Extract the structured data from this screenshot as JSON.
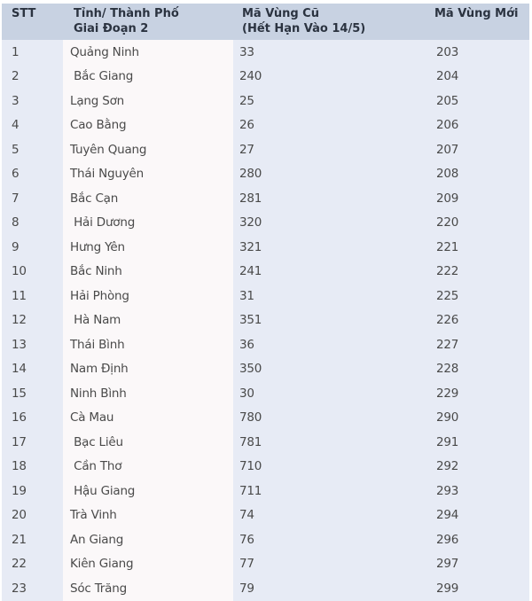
{
  "table": {
    "headers": [
      "STT",
      "Tỉnh/ Thành Phố\nGiai Đoạn 2",
      "Mã Vùng Cũ\n(Hết Hạn Vào 14/5)",
      "Mã Vùng Mới"
    ],
    "rows": [
      [
        "1",
        "Quảng Ninh",
        "33",
        "203"
      ],
      [
        "2",
        " Bắc Giang",
        "240",
        "204"
      ],
      [
        "3",
        "Lạng Sơn",
        "25",
        "205"
      ],
      [
        "4",
        "Cao Bằng",
        "26",
        "206"
      ],
      [
        "5",
        "Tuyên Quang",
        "27",
        "207"
      ],
      [
        "6",
        "Thái Nguyên",
        "280",
        "208"
      ],
      [
        "7",
        "Bắc Cạn",
        "281",
        "209"
      ],
      [
        "8",
        " Hải Dương",
        "320",
        "220"
      ],
      [
        "9",
        "Hưng Yên",
        "321",
        "221"
      ],
      [
        "10",
        "Bắc Ninh",
        "241",
        "222"
      ],
      [
        "11",
        "Hải Phòng",
        "31",
        "225"
      ],
      [
        "12",
        " Hà Nam",
        "351",
        "226"
      ],
      [
        "13",
        "Thái Bình",
        "36",
        "227"
      ],
      [
        "14",
        "Nam Định",
        "350",
        "228"
      ],
      [
        "15",
        "Ninh Bình",
        "30",
        "229"
      ],
      [
        "16",
        "Cà Mau",
        "780",
        "290"
      ],
      [
        "17",
        " Bạc Liêu",
        "781",
        "291"
      ],
      [
        "18",
        " Cần Thơ",
        "710",
        "292"
      ],
      [
        "19",
        " Hậu Giang",
        "711",
        "293"
      ],
      [
        "20",
        "Trà Vinh",
        "74",
        "294"
      ],
      [
        "21",
        "An Giang",
        "76",
        "296"
      ],
      [
        "22",
        "Kiên Giang",
        "77",
        "297"
      ],
      [
        "23",
        "Sóc Trăng",
        "79",
        "299"
      ]
    ]
  }
}
